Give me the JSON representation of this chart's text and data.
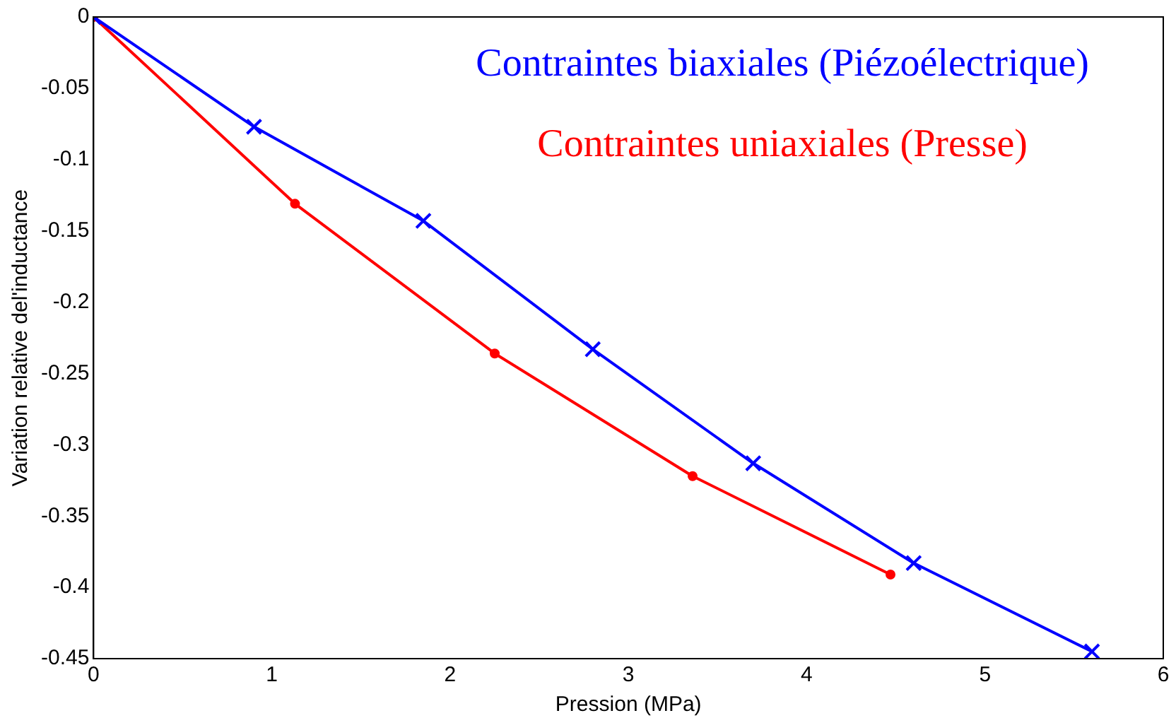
{
  "chart_data": {
    "type": "line",
    "xlabel": "Pression (MPa)",
    "ylabel": "Variation relative del'inductance",
    "xlim": [
      0,
      6
    ],
    "xticks": [
      0,
      1,
      2,
      3,
      4,
      5,
      6
    ],
    "ylim": [
      -0.45,
      0
    ],
    "yticks": [
      0,
      -0.05,
      -0.1,
      -0.15,
      -0.2,
      -0.25,
      -0.3,
      -0.35,
      -0.4,
      -0.45
    ],
    "grid": false,
    "legend": "top right",
    "line_style": "solid",
    "series": [
      {
        "name": "Contraintes biaxiales (Piézoélectrique)",
        "color": "#0000ff",
        "marker": "cross",
        "x": [
          0,
          0.9,
          1.85,
          2.8,
          3.7,
          4.6,
          5.6
        ],
        "values": [
          0,
          -0.077,
          -0.143,
          -0.233,
          -0.313,
          -0.383,
          -0.445
        ]
      },
      {
        "name": "Contraintes uniaxiales (Presse)",
        "color": "#ff0000",
        "marker": "circle",
        "x": [
          0,
          1.13,
          2.25,
          3.36,
          4.47
        ],
        "values": [
          0,
          -0.131,
          -0.236,
          -0.322,
          -0.391
        ]
      }
    ]
  }
}
